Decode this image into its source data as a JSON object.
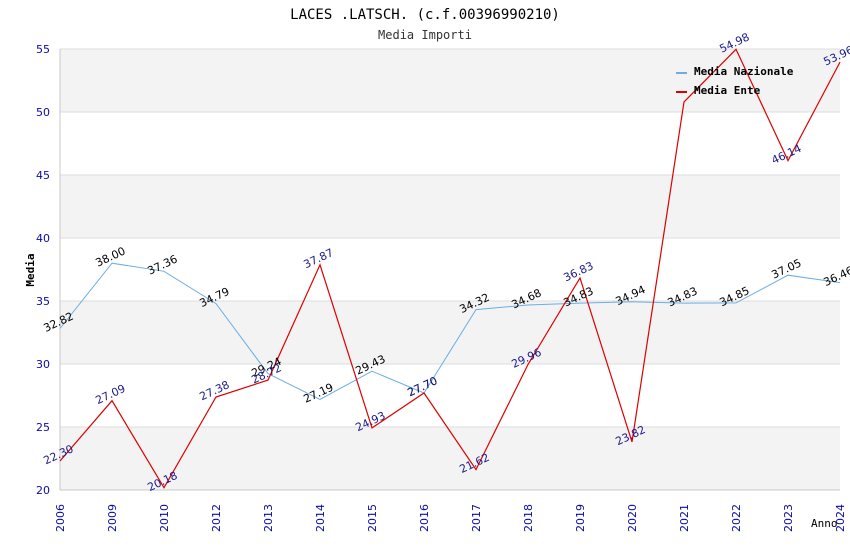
{
  "chart_data": {
    "type": "line",
    "title": "LACES .LATSCH. (c.f.00396990210)",
    "subtitle": "Media Importi",
    "xlabel": "Anno",
    "ylabel": "Media",
    "ylim": [
      20,
      55
    ],
    "yticks": [
      "20",
      "25",
      "30",
      "35",
      "40",
      "45",
      "50",
      "55"
    ],
    "categories": [
      "2006",
      "2009",
      "2010",
      "2012",
      "2013",
      "2014",
      "2015",
      "2016",
      "2017",
      "2018",
      "2019",
      "2020",
      "2021",
      "2022",
      "2023",
      "2024"
    ],
    "legend_position": "top-right",
    "series": [
      {
        "name": "Media Nazionale",
        "color": "#6aaee6",
        "label_color": "#000000",
        "values": [
          32.82,
          38.0,
          37.36,
          34.79,
          29.24,
          27.19,
          29.43,
          27.7,
          34.32,
          34.68,
          34.83,
          34.94,
          34.83,
          34.85,
          37.05,
          36.46
        ],
        "labels": [
          "32.82",
          "38.00",
          "37.36",
          "34.79",
          "29.24",
          "27.19",
          "29.43",
          "27.70",
          "34.32",
          "34.68",
          "34.83",
          "34.94",
          "34.83",
          "34.85",
          "37.05",
          "36.46"
        ]
      },
      {
        "name": "Media Ente",
        "color": "#dd0000",
        "label_color": "#1a1a8c",
        "values": [
          22.3,
          27.09,
          20.18,
          27.38,
          28.72,
          37.87,
          24.93,
          27.7,
          21.62,
          29.96,
          36.83,
          23.82,
          50.8,
          54.98,
          46.14,
          53.96
        ],
        "labels": [
          "22.30",
          "27.09",
          "20.18",
          "27.38",
          "28.72",
          "37.87",
          "24.93",
          "27.70",
          "21.62",
          "29.96",
          "36.83",
          "23.82",
          "",
          "54.98",
          "46.14",
          "53.96"
        ]
      }
    ]
  }
}
